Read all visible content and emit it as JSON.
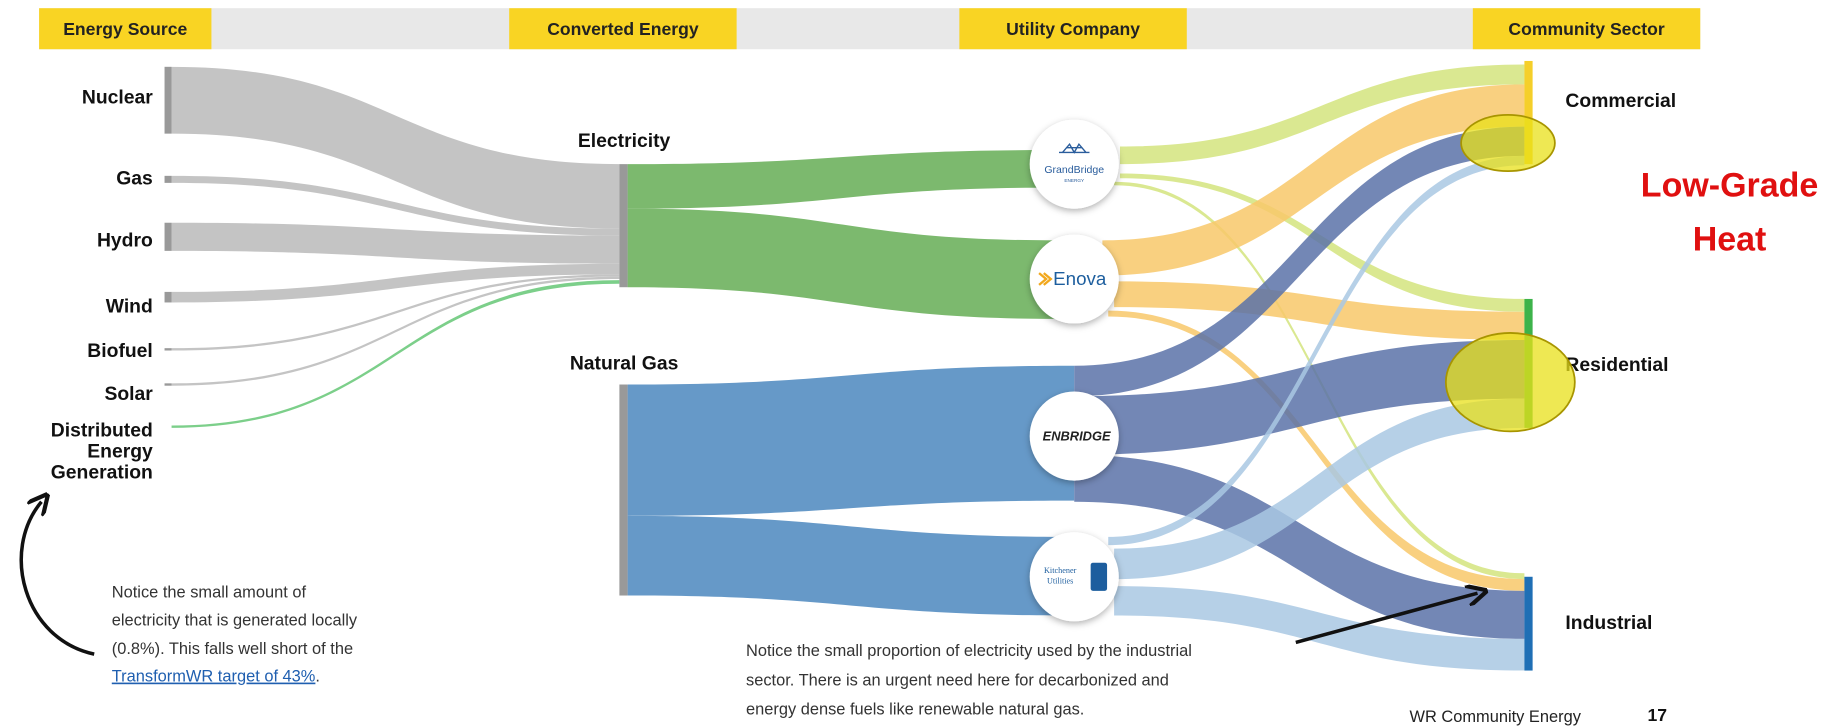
{
  "header": {
    "columns": [
      "Energy Source",
      "Converted Energy",
      "Utility Company",
      "Community Sector"
    ]
  },
  "sources": [
    "Nuclear",
    "Gas",
    "Hydro",
    "Wind",
    "Biofuel",
    "Solar"
  ],
  "distributed": [
    "Distributed",
    "Energy",
    "Generation"
  ],
  "converted": [
    "Electricity",
    "Natural Gas"
  ],
  "utilities": {
    "grandbridge": [
      "GrandBridge",
      "ENERGY"
    ],
    "enova": "Enova",
    "enbridge": "ENBRIDGE",
    "kitchener": [
      "Kitchener",
      "Utilities"
    ]
  },
  "sectors": [
    "Commercial",
    "Residential",
    "Industrial"
  ],
  "callout": [
    "Low-Grade",
    "Heat"
  ],
  "note_left": {
    "lines": [
      "Notice the small amount of",
      "electricity that is generated locally",
      "(0.8%). This falls well short of the"
    ],
    "link": "TransformWR target of 43%",
    "after": "."
  },
  "note_bottom": [
    "Notice the small proportion of electricity used by the industrial",
    "sector. There is an urgent need here for decarbonized and",
    "energy dense fuels like renewable natural gas."
  ],
  "footer": {
    "title": "WR Community Energy",
    "page": "17"
  }
}
